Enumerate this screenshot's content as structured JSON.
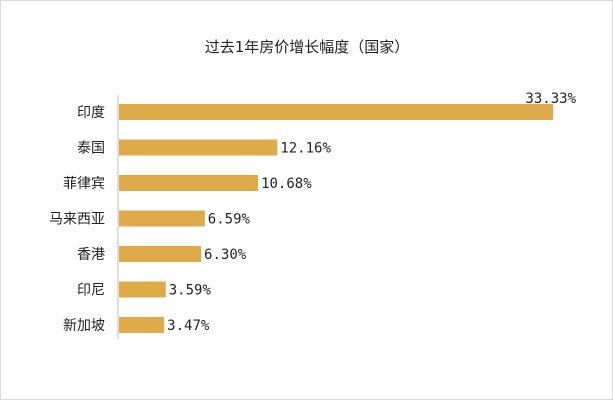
{
  "chart_data": {
    "type": "bar",
    "orientation": "horizontal",
    "title": "过去1年房价增长幅度（国家）",
    "categories": [
      "印度",
      "泰国",
      "菲律宾",
      "马来西亚",
      "香港",
      "印尼",
      "新加坡"
    ],
    "values": [
      33.33,
      12.16,
      10.68,
      6.59,
      6.3,
      3.59,
      3.47
    ],
    "value_labels": [
      "33.33%",
      "12.16%",
      "10.68%",
      "6.59%",
      "6.30%",
      "3.59%",
      "3.47%"
    ],
    "xlim": [
      0,
      33.33
    ],
    "grid": false,
    "legend": "none",
    "bar_color": "#dfab4a"
  }
}
